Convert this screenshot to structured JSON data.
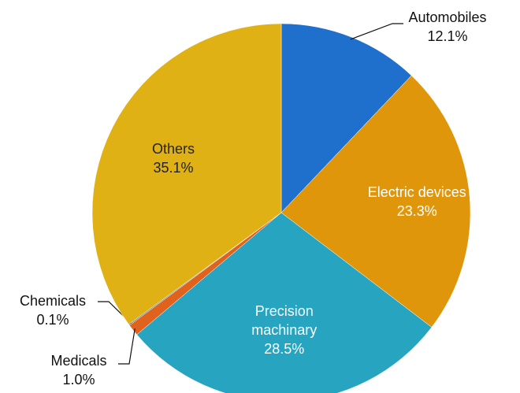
{
  "chart_data": {
    "type": "pie",
    "categories": [
      "Automobiles",
      "Electric devices",
      "Precision machinary",
      "Medicals",
      "Chemicals",
      "Others"
    ],
    "values": [
      12.1,
      23.3,
      28.5,
      1.0,
      0.1,
      35.1
    ],
    "value_labels": [
      "12.1%",
      "23.3%",
      "28.5%",
      "1.0%",
      "0.1%",
      "35.1%"
    ],
    "colors": [
      "#1f6fcc",
      "#e0960a",
      "#27a4c0",
      "#e0621c",
      "#5e8a96",
      "#e0b115"
    ]
  }
}
